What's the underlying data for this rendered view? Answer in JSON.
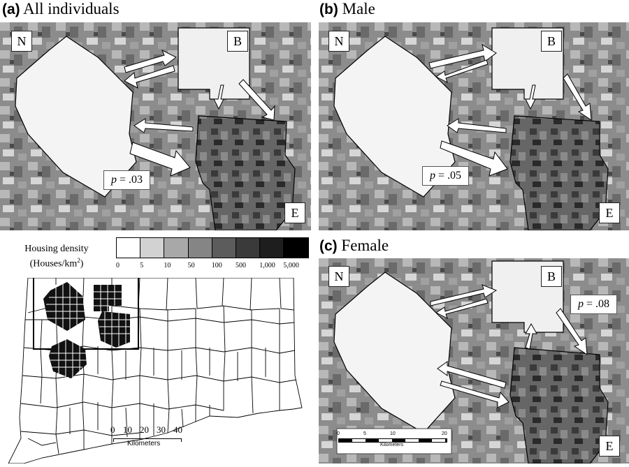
{
  "panels": {
    "a": {
      "letter": "(a)",
      "title": "All individuals",
      "p": "p",
      "pvalue": " = .03"
    },
    "b": {
      "letter": "(b)",
      "title": "Male",
      "p": "p",
      "pvalue": " = .05"
    },
    "c": {
      "letter": "(c)",
      "title": "Female",
      "p": "p",
      "pvalue": " = .08"
    }
  },
  "sites": {
    "N": "N",
    "B": "B",
    "E": "E"
  },
  "legend": {
    "title_line1": "Housing density",
    "title_line2": "(Houses/km",
    "title_sup": "2",
    "title_end": ")",
    "ticks": [
      "0",
      "5",
      "10",
      "50",
      "100",
      "500",
      "1,000",
      "5,000"
    ],
    "colors": [
      "#ffffff",
      "#d2d2d2",
      "#a8a8a8",
      "#858585",
      "#5c5c5c",
      "#3a3a3a",
      "#1e1e1e",
      "#000000"
    ]
  },
  "scalebar_state": {
    "ticks": [
      "0",
      "10",
      "20",
      "30",
      "40"
    ],
    "unit": "Kilometers"
  },
  "scalebar_female": {
    "ticks": [
      "0",
      "5",
      "10",
      "20"
    ],
    "unit": "Kilometers"
  }
}
